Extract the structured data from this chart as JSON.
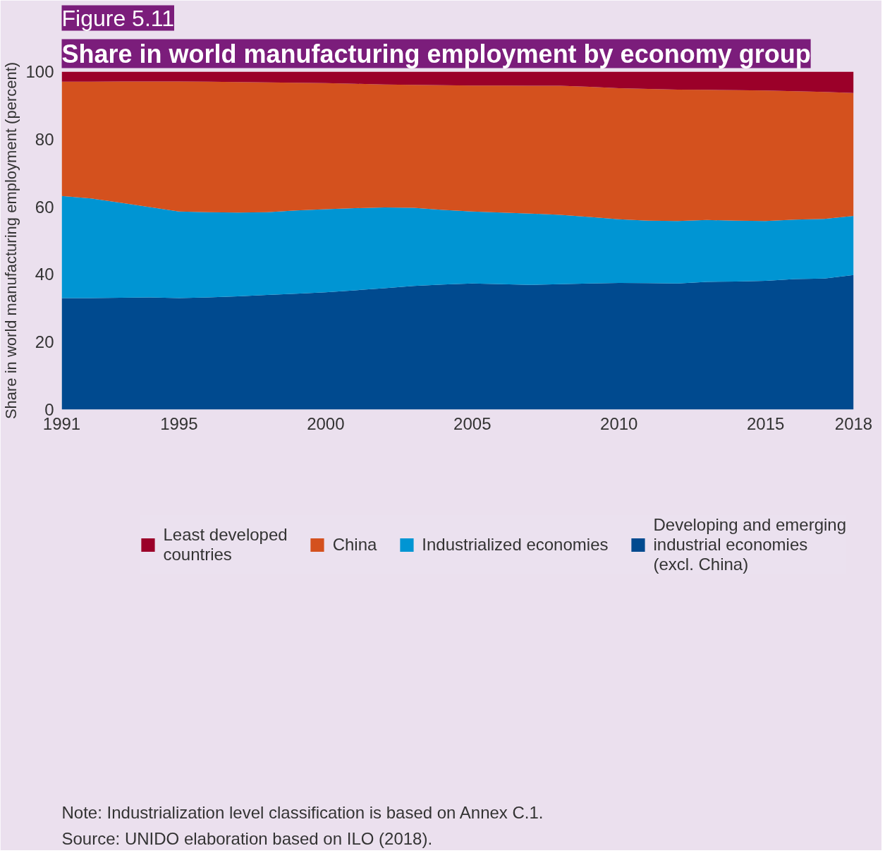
{
  "chart_data": {
    "type": "area",
    "title": "Figure 5.11",
    "subtitle": "Share in world manufacturing employment by economy group",
    "ylabel": "Share in world manufacturing employment (percent)",
    "stacked": true,
    "x": [
      1991,
      1992,
      1993,
      1994,
      1995,
      1996,
      1997,
      1998,
      1999,
      2000,
      2001,
      2002,
      2003,
      2004,
      2005,
      2006,
      2007,
      2008,
      2009,
      2010,
      2011,
      2012,
      2013,
      2014,
      2015,
      2016,
      2017,
      2018
    ],
    "series": [
      {
        "name": "Developing and emerging industrial economies (excl. China)",
        "color": "#004a8f",
        "values": [
          33.0,
          33.0,
          33.1,
          33.2,
          33.0,
          33.2,
          33.5,
          33.9,
          34.3,
          34.7,
          35.3,
          35.9,
          36.6,
          37.0,
          37.3,
          37.1,
          36.9,
          37.1,
          37.3,
          37.5,
          37.4,
          37.3,
          37.8,
          37.9,
          38.1,
          38.6,
          38.8,
          39.8
        ]
      },
      {
        "name": "Industrialized economies",
        "color": "#0095d3",
        "values": [
          30.2,
          29.5,
          28.1,
          26.7,
          25.6,
          25.2,
          24.8,
          24.5,
          24.6,
          24.6,
          24.3,
          23.9,
          23.1,
          22.1,
          21.3,
          21.2,
          21.1,
          20.5,
          19.7,
          18.8,
          18.5,
          18.5,
          18.3,
          18.0,
          17.7,
          17.6,
          17.6,
          17.5
        ]
      },
      {
        "name": "China",
        "color": "#d4511e",
        "values": [
          33.8,
          34.5,
          35.9,
          37.2,
          38.5,
          38.6,
          38.6,
          38.4,
          37.8,
          37.3,
          36.8,
          36.4,
          36.4,
          36.9,
          37.3,
          37.6,
          37.8,
          38.2,
          38.5,
          38.8,
          39.0,
          38.9,
          38.5,
          38.6,
          38.6,
          38.0,
          37.6,
          36.4
        ]
      },
      {
        "name": "Least developed countries",
        "color": "#9b0029",
        "values": [
          3.0,
          3.0,
          2.9,
          2.9,
          2.9,
          3.0,
          3.1,
          3.2,
          3.3,
          3.4,
          3.6,
          3.8,
          3.9,
          4.0,
          4.1,
          4.1,
          4.2,
          4.2,
          4.5,
          4.9,
          5.1,
          5.3,
          5.4,
          5.5,
          5.6,
          5.8,
          6.0,
          6.3
        ]
      }
    ],
    "xlim": [
      1991,
      2018
    ],
    "xticks": [
      1991,
      1995,
      2000,
      2005,
      2010,
      2015,
      2018
    ],
    "ylim": [
      0,
      100
    ],
    "yticks": [
      0,
      20,
      40,
      60,
      80,
      100
    ],
    "legend": "bottom",
    "annotations": [
      "Note: Industrialization level classification is based on Annex C.1.",
      "Source: UNIDO elaboration based on ILO (2018)."
    ]
  }
}
